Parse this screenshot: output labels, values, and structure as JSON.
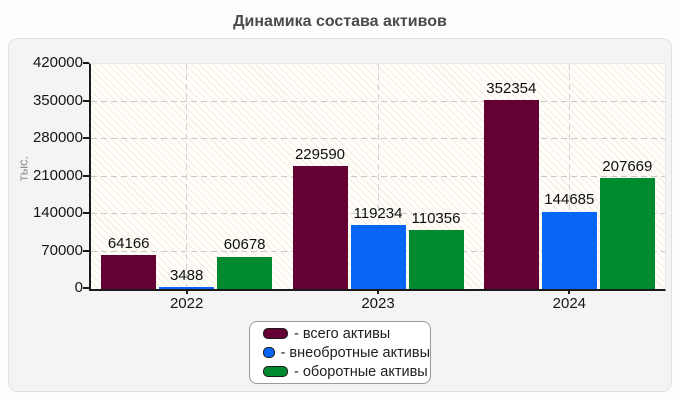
{
  "chart_data": {
    "type": "bar",
    "title": "Динамика состава активов",
    "ylabel": "тыс.",
    "xlabel": "",
    "categories": [
      "2022",
      "2023",
      "2024"
    ],
    "series": [
      {
        "name": "всего активы",
        "legend_label": "- всего активы",
        "color": "#640033",
        "values": [
          64166,
          229590,
          352354
        ]
      },
      {
        "name": "внеобротные активы",
        "legend_label": "- внеобротные активы",
        "color": "#0766f6",
        "values": [
          3488,
          119234,
          144685
        ]
      },
      {
        "name": "оборотные активы",
        "legend_label": "- оборотные активы",
        "color": "#008a30",
        "values": [
          60678,
          110356,
          207669
        ]
      }
    ],
    "ylim": [
      0,
      420000
    ],
    "yticks": [
      0,
      70000,
      140000,
      210000,
      280000,
      350000,
      420000
    ],
    "grid": "dashed horizontal lines at y ticks, dashed vertical lines at category centers",
    "legend_position": "bottom-center",
    "value_labels": true
  }
}
